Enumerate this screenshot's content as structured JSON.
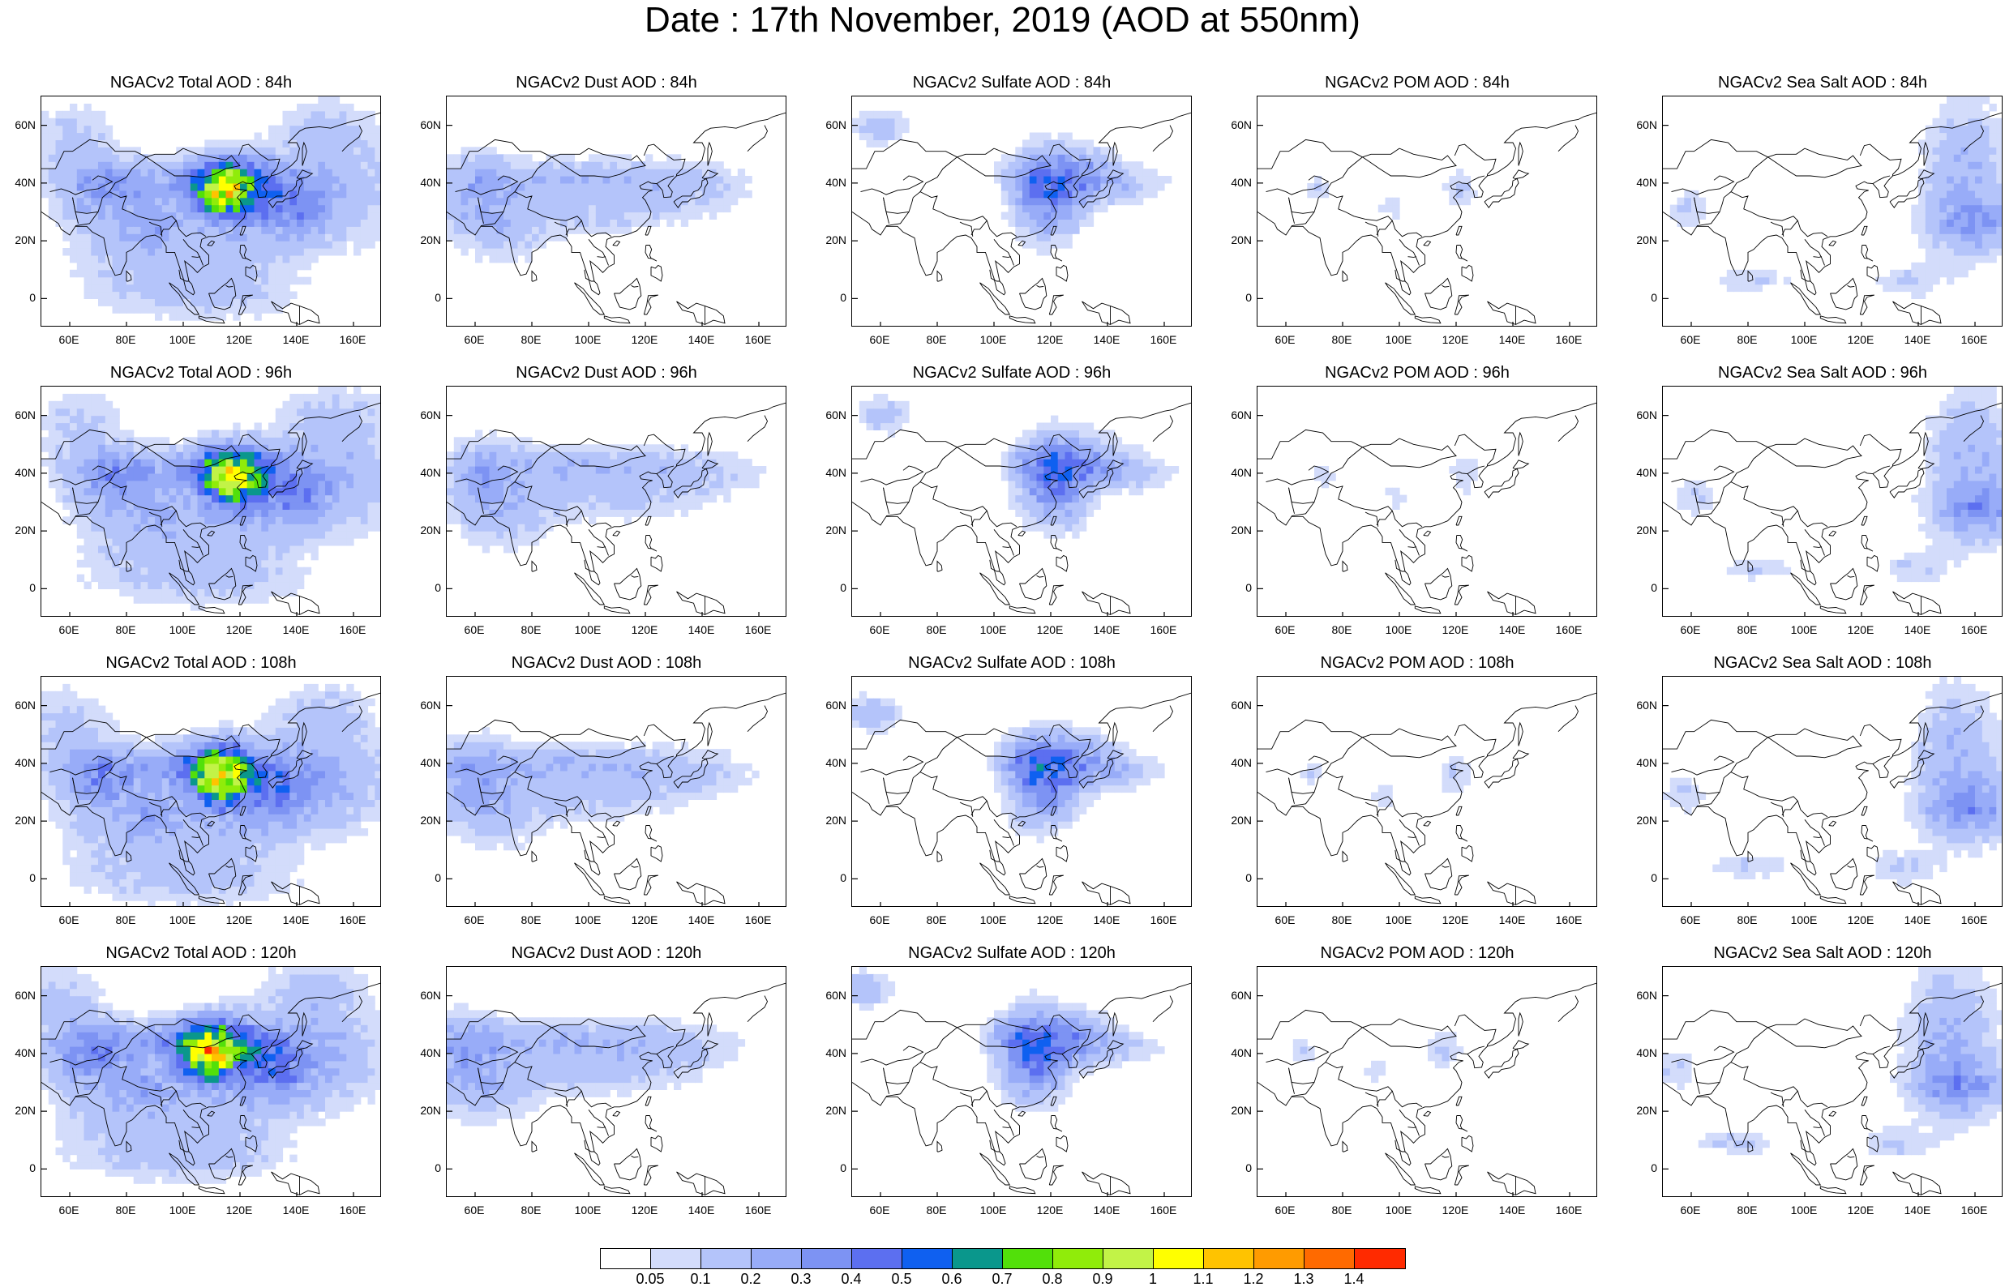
{
  "title": "Date : 17th November, 2019 (AOD at 550nm)",
  "lat_ticks": [
    "60N",
    "40N",
    "20N",
    "0"
  ],
  "lon_ticks": [
    "60E",
    "80E",
    "100E",
    "120E",
    "140E",
    "160E"
  ],
  "panels": [
    {
      "title": "NGACv2 Total AOD : 84h",
      "species": "total",
      "hour": 84
    },
    {
      "title": "NGACv2 Dust AOD : 84h",
      "species": "dust",
      "hour": 84
    },
    {
      "title": "NGACv2 Sulfate AOD : 84h",
      "species": "sulfate",
      "hour": 84
    },
    {
      "title": "NGACv2 POM AOD : 84h",
      "species": "pom",
      "hour": 84
    },
    {
      "title": "NGACv2 Sea Salt AOD : 84h",
      "species": "seasalt",
      "hour": 84
    },
    {
      "title": "NGACv2 Total AOD : 96h",
      "species": "total",
      "hour": 96
    },
    {
      "title": "NGACv2 Dust AOD : 96h",
      "species": "dust",
      "hour": 96
    },
    {
      "title": "NGACv2 Sulfate AOD : 96h",
      "species": "sulfate",
      "hour": 96
    },
    {
      "title": "NGACv2 POM AOD : 96h",
      "species": "pom",
      "hour": 96
    },
    {
      "title": "NGACv2 Sea Salt AOD : 96h",
      "species": "seasalt",
      "hour": 96
    },
    {
      "title": "NGACv2 Total AOD : 108h",
      "species": "total",
      "hour": 108
    },
    {
      "title": "NGACv2 Dust AOD : 108h",
      "species": "dust",
      "hour": 108
    },
    {
      "title": "NGACv2 Sulfate AOD : 108h",
      "species": "sulfate",
      "hour": 108
    },
    {
      "title": "NGACv2 POM AOD : 108h",
      "species": "pom",
      "hour": 108
    },
    {
      "title": "NGACv2 Sea Salt AOD : 108h",
      "species": "seasalt",
      "hour": 108
    },
    {
      "title": "NGACv2 Total AOD : 120h",
      "species": "total",
      "hour": 120
    },
    {
      "title": "NGACv2 Dust AOD : 120h",
      "species": "dust",
      "hour": 120
    },
    {
      "title": "NGACv2 Sulfate AOD : 120h",
      "species": "sulfate",
      "hour": 120
    },
    {
      "title": "NGACv2 POM AOD : 120h",
      "species": "pom",
      "hour": 120
    },
    {
      "title": "NGACv2 Sea Salt  AOD : 120h",
      "species": "seasalt",
      "hour": 120
    }
  ],
  "colorbar": {
    "labels": [
      "0.05",
      "0.1",
      "0.2",
      "0.3",
      "0.4",
      "0.5",
      "0.6",
      "0.7",
      "0.8",
      "0.9",
      "1",
      "1.1",
      "1.2",
      "1.3",
      "1.4"
    ],
    "colors": [
      "#ffffff",
      "#d3dcfb",
      "#b4c4fa",
      "#98acf8",
      "#7d93f3",
      "#5c6ff0",
      "#0f60f0",
      "#0a978c",
      "#52e00a",
      "#90ec0a",
      "#c2f347",
      "#ffff00",
      "#ffc300",
      "#ff9b00",
      "#ff6a00",
      "#ff2a00"
    ]
  }
}
